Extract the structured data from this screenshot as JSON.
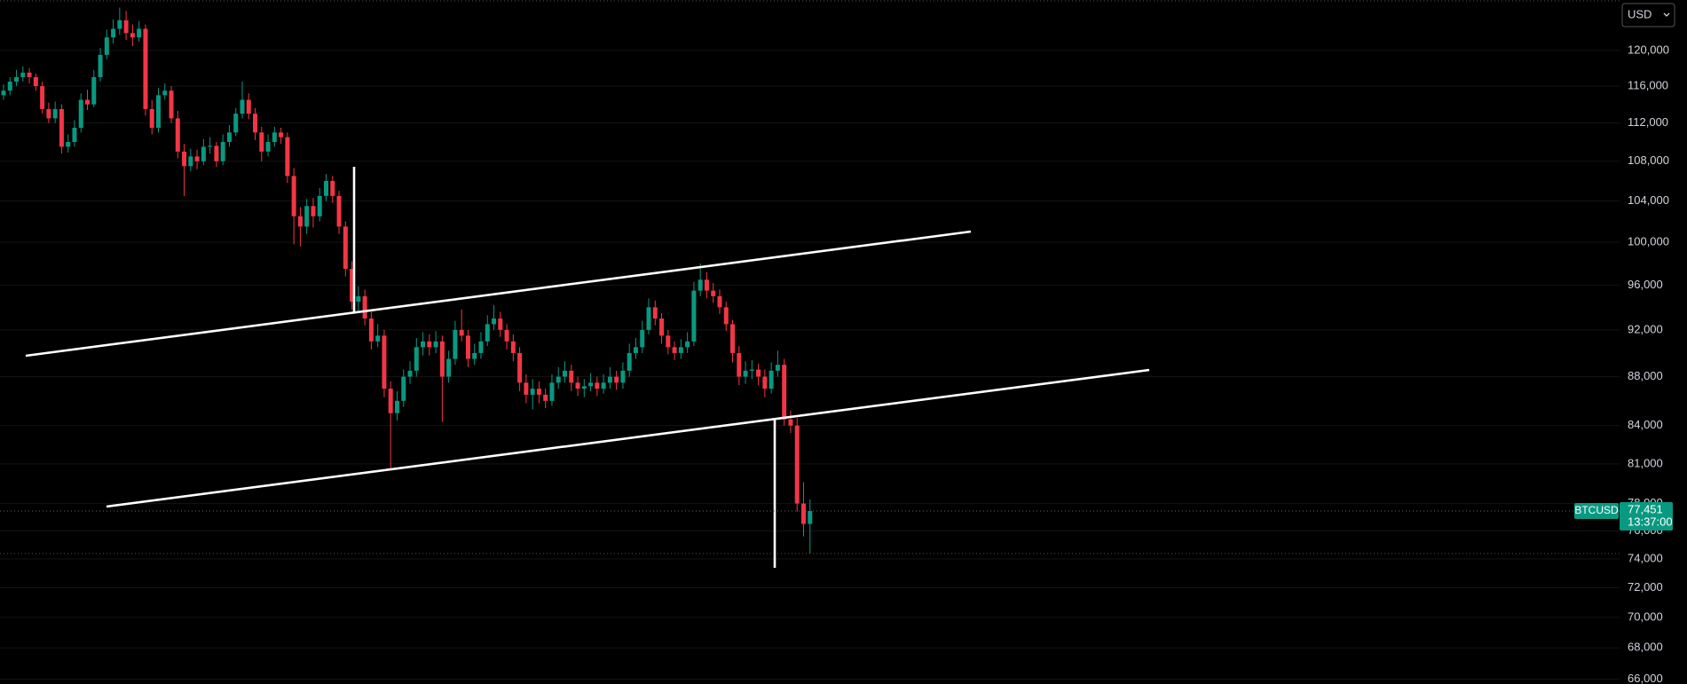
{
  "chart_data": {
    "type": "candlestick",
    "symbol": "BTCUSD",
    "currency": "USD",
    "countdown": "13:37:00",
    "last_price": {
      "value": 77451,
      "label": "77,451"
    },
    "up_color": "#089981",
    "down_color": "#f23645",
    "log_scale": true,
    "grid": true,
    "ylim": [
      65700,
      125900
    ],
    "yticks": [
      {
        "value": 66000,
        "label": "66,000"
      },
      {
        "value": 68000,
        "label": "68,000"
      },
      {
        "value": 70000,
        "label": "70,000"
      },
      {
        "value": 72000,
        "label": "72,000"
      },
      {
        "value": 74000,
        "label": "74,000"
      },
      {
        "value": 76000,
        "label": "76,000"
      },
      {
        "value": 78000,
        "label": "78,000"
      },
      {
        "value": 81000,
        "label": "81,000"
      },
      {
        "value": 84000,
        "label": "84,000"
      },
      {
        "value": 88000,
        "label": "88,000"
      },
      {
        "value": 92000,
        "label": "92,000"
      },
      {
        "value": 96000,
        "label": "96,000"
      },
      {
        "value": 100000,
        "label": "100,000"
      },
      {
        "value": 104000,
        "label": "104,000"
      },
      {
        "value": 108000,
        "label": "108,000"
      },
      {
        "value": 112000,
        "label": "112,000"
      },
      {
        "value": 116000,
        "label": "116,000"
      },
      {
        "value": 120000,
        "label": "120,000"
      }
    ],
    "ohlc": [
      [
        115000,
        116200,
        114500,
        115500
      ],
      [
        115500,
        117000,
        115000,
        116500
      ],
      [
        116500,
        117800,
        116000,
        117000
      ],
      [
        117000,
        118200,
        116500,
        117500
      ],
      [
        117500,
        118000,
        116300,
        117000
      ],
      [
        117000,
        117400,
        115500,
        116000
      ],
      [
        116000,
        116500,
        113000,
        113500
      ],
      [
        113500,
        114200,
        112000,
        112500
      ],
      [
        112500,
        114300,
        112000,
        113500
      ],
      [
        113500,
        114000,
        108800,
        109500
      ],
      [
        109500,
        110800,
        108900,
        110000
      ],
      [
        110000,
        112300,
        109500,
        111500
      ],
      [
        111500,
        115200,
        111000,
        114500
      ],
      [
        114500,
        115600,
        113400,
        114000
      ],
      [
        114000,
        117800,
        113700,
        117000
      ],
      [
        117000,
        120300,
        116500,
        119500
      ],
      [
        119500,
        122400,
        119000,
        121500
      ],
      [
        121500,
        123600,
        120800,
        122500
      ],
      [
        122500,
        125000,
        121800,
        123500
      ],
      [
        123500,
        124600,
        121200,
        122000
      ],
      [
        122000,
        123000,
        120500,
        121500
      ],
      [
        121500,
        123400,
        121000,
        122500
      ],
      [
        122500,
        123000,
        112800,
        113500
      ],
      [
        113500,
        114500,
        110800,
        111500
      ],
      [
        111500,
        115800,
        111000,
        115000
      ],
      [
        115000,
        116300,
        114500,
        115500
      ],
      [
        115500,
        116000,
        112000,
        112500
      ],
      [
        112500,
        113300,
        108300,
        109000
      ],
      [
        109000,
        109800,
        104500,
        107500
      ],
      [
        107500,
        109300,
        107000,
        108500
      ],
      [
        108500,
        109200,
        107200,
        108000
      ],
      [
        108000,
        110300,
        107600,
        109500
      ],
      [
        109500,
        110500,
        108800,
        109600
      ],
      [
        109600,
        110000,
        107400,
        108000
      ],
      [
        108000,
        110800,
        107600,
        110000
      ],
      [
        110000,
        111800,
        109500,
        111000
      ],
      [
        111000,
        113600,
        110600,
        113000
      ],
      [
        113000,
        116500,
        112500,
        114500
      ],
      [
        114500,
        115200,
        112400,
        113000
      ],
      [
        113000,
        113600,
        110200,
        111000
      ],
      [
        111000,
        111600,
        108000,
        109000
      ],
      [
        109000,
        110800,
        108500,
        110000
      ],
      [
        110000,
        111600,
        109500,
        111000
      ],
      [
        111000,
        111500,
        109800,
        110500
      ],
      [
        110500,
        111000,
        105800,
        106500
      ],
      [
        106500,
        107300,
        99800,
        102500
      ],
      [
        102500,
        103400,
        99600,
        101500
      ],
      [
        101500,
        104200,
        100800,
        103500
      ],
      [
        103500,
        104300,
        101400,
        102500
      ],
      [
        102500,
        105300,
        102000,
        104500
      ],
      [
        104500,
        106700,
        104000,
        106000
      ],
      [
        106000,
        106500,
        103800,
        104500
      ],
      [
        104500,
        105000,
        100800,
        101500
      ],
      [
        101500,
        102000,
        96800,
        97500
      ],
      [
        97500,
        98200,
        93800,
        94500
      ],
      [
        94500,
        95900,
        93600,
        95000
      ],
      [
        95000,
        95600,
        92400,
        93000
      ],
      [
        93000,
        93600,
        90300,
        91000
      ],
      [
        91000,
        92500,
        90500,
        91500
      ],
      [
        91500,
        92000,
        86300,
        87000
      ],
      [
        87000,
        87600,
        80600,
        85000
      ],
      [
        85000,
        86800,
        84400,
        86000
      ],
      [
        86000,
        88600,
        85500,
        88000
      ],
      [
        88000,
        89300,
        87400,
        88500
      ],
      [
        88500,
        91300,
        88000,
        90500
      ],
      [
        90500,
        91800,
        89800,
        91000
      ],
      [
        91000,
        91600,
        89800,
        90500
      ],
      [
        90500,
        91900,
        90000,
        91000
      ],
      [
        91000,
        91500,
        84300,
        88000
      ],
      [
        88000,
        90200,
        87500,
        89500
      ],
      [
        89500,
        92800,
        89000,
        92000
      ],
      [
        92000,
        93800,
        91000,
        91500
      ],
      [
        91500,
        92000,
        88800,
        89500
      ],
      [
        89500,
        90800,
        89000,
        90000
      ],
      [
        90000,
        91800,
        89500,
        91000
      ],
      [
        91000,
        93300,
        90600,
        92500
      ],
      [
        92500,
        94200,
        92000,
        93000
      ],
      [
        93000,
        93600,
        91400,
        92000
      ],
      [
        92000,
        92500,
        90300,
        91000
      ],
      [
        91000,
        91600,
        89300,
        90000
      ],
      [
        90000,
        90500,
        86800,
        87500
      ],
      [
        87500,
        88200,
        85800,
        86500
      ],
      [
        86500,
        87800,
        85300,
        87000
      ],
      [
        87000,
        87600,
        85800,
        86500
      ],
      [
        86500,
        87000,
        85400,
        86000
      ],
      [
        86000,
        88200,
        85600,
        87500
      ],
      [
        87500,
        88800,
        87000,
        88000
      ],
      [
        88000,
        89300,
        87500,
        88500
      ],
      [
        88500,
        89000,
        86800,
        87500
      ],
      [
        87500,
        88000,
        86400,
        87000
      ],
      [
        87000,
        87800,
        86300,
        87200
      ],
      [
        87200,
        88300,
        86800,
        87500
      ],
      [
        87500,
        88000,
        86400,
        87000
      ],
      [
        87000,
        88200,
        86600,
        87500
      ],
      [
        87500,
        88800,
        87000,
        88000
      ],
      [
        88000,
        88500,
        86900,
        87500
      ],
      [
        87500,
        89200,
        87000,
        88500
      ],
      [
        88500,
        90800,
        88000,
        90000
      ],
      [
        90000,
        91300,
        89500,
        90500
      ],
      [
        90500,
        92800,
        90000,
        92000
      ],
      [
        92000,
        94800,
        91600,
        94000
      ],
      [
        94000,
        94600,
        92400,
        93000
      ],
      [
        93000,
        93500,
        90800,
        91500
      ],
      [
        91500,
        92000,
        89900,
        90500
      ],
      [
        90500,
        91000,
        89400,
        90000
      ],
      [
        90000,
        91200,
        89500,
        90500
      ],
      [
        90500,
        91800,
        90000,
        91000
      ],
      [
        91000,
        96300,
        90600,
        95500
      ],
      [
        95500,
        98000,
        95000,
        96500
      ],
      [
        96500,
        97200,
        94800,
        95500
      ],
      [
        95500,
        96200,
        94400,
        95000
      ],
      [
        95000,
        95600,
        93400,
        94000
      ],
      [
        94000,
        94500,
        91900,
        92500
      ],
      [
        92500,
        92900,
        89200,
        90000
      ],
      [
        90000,
        90600,
        87300,
        88000
      ],
      [
        88000,
        89300,
        87400,
        88500
      ],
      [
        88500,
        89400,
        87800,
        88600
      ],
      [
        88600,
        89100,
        87300,
        88000
      ],
      [
        88000,
        88600,
        86300,
        87000
      ],
      [
        87000,
        89200,
        86600,
        88500
      ],
      [
        88500,
        90200,
        88000,
        89000
      ],
      [
        89000,
        89500,
        84000,
        84500
      ],
      [
        84500,
        85200,
        83400,
        84000
      ],
      [
        84000,
        84600,
        77400,
        78000
      ],
      [
        78000,
        79600,
        75600,
        76500
      ],
      [
        76500,
        78300,
        74400,
        77451
      ]
    ]
  }
}
